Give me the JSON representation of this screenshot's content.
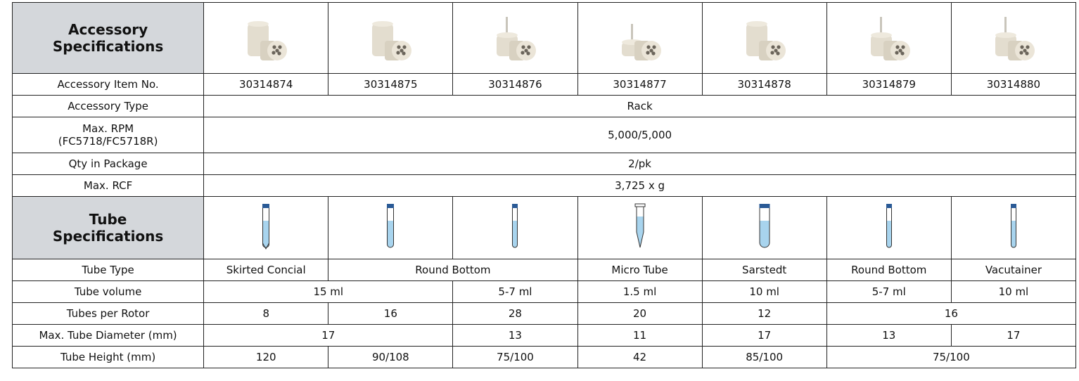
{
  "accessory_specifications": {
    "heading": [
      "Accessory",
      "Specifications"
    ],
    "rows": [
      {
        "label": [
          "Accessory Item No."
        ],
        "cells": [
          "30314874",
          "30314875",
          "30314876",
          "30314877",
          "30314878",
          "30314879",
          "30314880"
        ]
      },
      {
        "label": [
          "Accessory Type"
        ],
        "cells": [
          "Rack"
        ]
      },
      {
        "label": [
          "Max. RPM",
          "(FC5718/FC5718R)"
        ],
        "cells": [
          "5,000/5,000"
        ]
      },
      {
        "label": [
          "Qty in Package"
        ],
        "cells": [
          "2/pk"
        ]
      },
      {
        "label": [
          "Max. RCF"
        ],
        "cells": [
          "3,725 x g"
        ]
      }
    ]
  },
  "tube_specifications": {
    "heading": [
      "Tube",
      "Specifications"
    ],
    "rows": [
      {
        "label": [
          "Tube Type"
        ],
        "cells": [
          "Skirted Concial",
          "Round Bottom",
          "Micro Tube",
          "Sarstedt",
          "Round Bottom",
          "Vacutainer"
        ]
      },
      {
        "label": [
          "Tube volume"
        ],
        "cells": [
          "15 ml",
          "5-7 ml",
          "1.5 ml",
          "10 ml",
          "5-7 ml",
          "10 ml"
        ]
      },
      {
        "label": [
          "Tubes per Rotor"
        ],
        "cells": [
          "8",
          "16",
          "28",
          "20",
          "12",
          "16"
        ]
      },
      {
        "label": [
          "Max. Tube Diameter (mm)"
        ],
        "cells": [
          "17",
          "13",
          "11",
          "17",
          "13",
          "17"
        ]
      },
      {
        "label": [
          "Tube Height (mm)"
        ],
        "cells": [
          "120",
          "90/108",
          "75/100",
          "42",
          "85/100",
          "75/100"
        ]
      }
    ]
  }
}
